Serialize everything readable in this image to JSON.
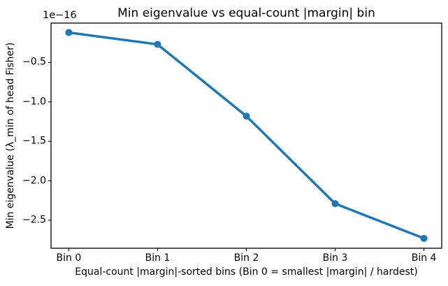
{
  "chart_data": {
    "type": "line",
    "title": "Min eigenvalue vs equal-count |margin| bin",
    "xlabel": "Equal-count |margin|-sorted bins (Bin 0 = smallest |margin| / hardest)",
    "ylabel": "Min eigenvalue (λ_min of head Fisher)",
    "y_offset_text": "1e−16",
    "unit_note": "y values are in units of 1e-16",
    "categories": [
      "Bin 0",
      "Bin 1",
      "Bin 2",
      "Bin 3",
      "Bin 4"
    ],
    "series": [
      {
        "name": "min-eigenvalue",
        "values_e16": [
          -0.12,
          -0.27,
          -1.18,
          -2.29,
          -2.73
        ]
      }
    ],
    "yticks_e16": [
      -0.5,
      -1.0,
      -1.5,
      -2.0,
      -2.5
    ],
    "ytick_labels": [
      "−0.5",
      "−1.0",
      "−1.5",
      "−2.0",
      "−2.5"
    ],
    "xlim": [
      -0.2,
      4.2
    ],
    "ylim_e16": [
      -2.855,
      0.0
    ],
    "grid": false,
    "legend_position": "none",
    "line_color": "#1f77b4",
    "marker": "o",
    "axes_edge_color": "#000000",
    "background_color": "#ffffff"
  }
}
